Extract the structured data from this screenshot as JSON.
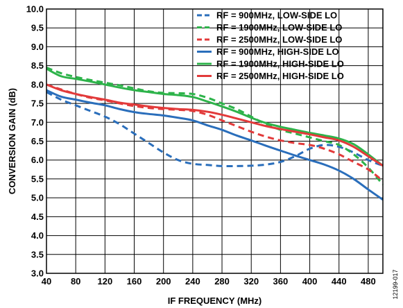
{
  "chart_data": {
    "type": "line",
    "xlabel": "IF FREQUENCY (MHz)",
    "ylabel": "CONVERSION GAIN (dB)",
    "xlim": [
      40,
      500
    ],
    "ylim": [
      3.0,
      10.0
    ],
    "xticks": [
      40,
      80,
      120,
      160,
      200,
      240,
      280,
      320,
      360,
      400,
      440,
      480
    ],
    "xtick_labels": [
      "40",
      "80",
      "120",
      "160",
      "200",
      "240",
      "280",
      "320",
      "360",
      "400",
      "440",
      "480"
    ],
    "yticks": [
      3.0,
      3.5,
      4.0,
      4.5,
      5.0,
      5.5,
      6.0,
      6.5,
      7.0,
      7.5,
      8.0,
      8.5,
      9.0,
      9.5,
      10.0
    ],
    "ytick_labels": [
      "3.0",
      "3.5",
      "4.0",
      "4.5",
      "5.0",
      "5.5",
      "6.0",
      "6.5",
      "7.0",
      "7.5",
      "8.0",
      "8.5",
      "9.0",
      "9.5",
      "10.0"
    ],
    "grid": true,
    "legend_position": "top-right",
    "series": [
      {
        "name": "RF = 900MHz, LOW-SIDE LO",
        "color": "#2a6ebb",
        "dash": true,
        "x": [
          40,
          60,
          80,
          100,
          120,
          140,
          160,
          180,
          200,
          220,
          240,
          260,
          280,
          300,
          320,
          340,
          360,
          380,
          400,
          420,
          440,
          460,
          480,
          500
        ],
        "y": [
          7.8,
          7.6,
          7.45,
          7.3,
          7.15,
          6.95,
          6.7,
          6.45,
          6.2,
          6.0,
          5.9,
          5.87,
          5.84,
          5.84,
          5.85,
          5.88,
          5.95,
          6.1,
          6.3,
          6.4,
          6.35,
          6.2,
          6.0,
          5.85
        ]
      },
      {
        "name": "RF = 1900MHz, LOW-SIDE LO",
        "color": "#2db34a",
        "dash": true,
        "x": [
          40,
          60,
          80,
          100,
          120,
          140,
          160,
          180,
          200,
          220,
          240,
          260,
          280,
          300,
          320,
          340,
          360,
          380,
          400,
          420,
          440,
          460,
          480,
          500
        ],
        "y": [
          8.45,
          8.3,
          8.2,
          8.12,
          8.05,
          7.98,
          7.9,
          7.82,
          7.78,
          7.77,
          7.75,
          7.65,
          7.5,
          7.35,
          7.15,
          6.95,
          6.8,
          6.7,
          6.6,
          6.5,
          6.4,
          6.15,
          5.8,
          5.35
        ]
      },
      {
        "name": "RF = 2500MHz, LOW-SIDE LO",
        "color": "#e23a3a",
        "dash": true,
        "x": [
          40,
          60,
          80,
          100,
          120,
          140,
          160,
          180,
          200,
          220,
          240,
          260,
          280,
          300,
          320,
          340,
          360,
          380,
          400,
          420,
          440,
          460,
          480,
          500
        ],
        "y": [
          8.0,
          7.87,
          7.75,
          7.65,
          7.58,
          7.5,
          7.43,
          7.38,
          7.35,
          7.33,
          7.3,
          7.2,
          7.05,
          6.9,
          6.75,
          6.62,
          6.52,
          6.45,
          6.4,
          6.3,
          6.15,
          5.95,
          5.75,
          5.45
        ]
      },
      {
        "name": "RF = 900MHz, HIGH-SIDE LO",
        "color": "#2a6ebb",
        "dash": false,
        "x": [
          40,
          60,
          80,
          100,
          120,
          140,
          160,
          180,
          200,
          220,
          240,
          260,
          280,
          300,
          320,
          340,
          360,
          380,
          400,
          420,
          440,
          460,
          480,
          500
        ],
        "y": [
          7.85,
          7.68,
          7.6,
          7.52,
          7.45,
          7.35,
          7.27,
          7.22,
          7.18,
          7.12,
          7.05,
          6.92,
          6.8,
          6.65,
          6.52,
          6.38,
          6.25,
          6.12,
          6.0,
          5.88,
          5.72,
          5.5,
          5.22,
          4.95
        ]
      },
      {
        "name": "RF = 1900MHz, HIGH-SIDE LO",
        "color": "#2db34a",
        "dash": false,
        "x": [
          40,
          60,
          80,
          100,
          120,
          140,
          160,
          180,
          200,
          220,
          240,
          260,
          280,
          300,
          320,
          340,
          360,
          380,
          400,
          420,
          440,
          460,
          480,
          500
        ],
        "y": [
          8.42,
          8.22,
          8.15,
          8.08,
          8.0,
          7.92,
          7.85,
          7.8,
          7.75,
          7.72,
          7.67,
          7.55,
          7.42,
          7.28,
          7.12,
          6.98,
          6.88,
          6.8,
          6.72,
          6.65,
          6.57,
          6.42,
          6.15,
          5.85
        ]
      },
      {
        "name": "RF = 2500MHz, HIGH-SIDE LO",
        "color": "#e23a3a",
        "dash": false,
        "x": [
          40,
          60,
          80,
          100,
          120,
          140,
          160,
          180,
          200,
          220,
          240,
          260,
          280,
          300,
          320,
          340,
          360,
          380,
          400,
          420,
          440,
          460,
          480,
          500
        ],
        "y": [
          8.0,
          7.85,
          7.75,
          7.67,
          7.6,
          7.52,
          7.47,
          7.42,
          7.38,
          7.35,
          7.33,
          7.28,
          7.2,
          7.1,
          7.0,
          6.9,
          6.82,
          6.75,
          6.68,
          6.6,
          6.52,
          6.35,
          6.1,
          5.85
        ]
      }
    ]
  },
  "figure_id": "12199-017"
}
